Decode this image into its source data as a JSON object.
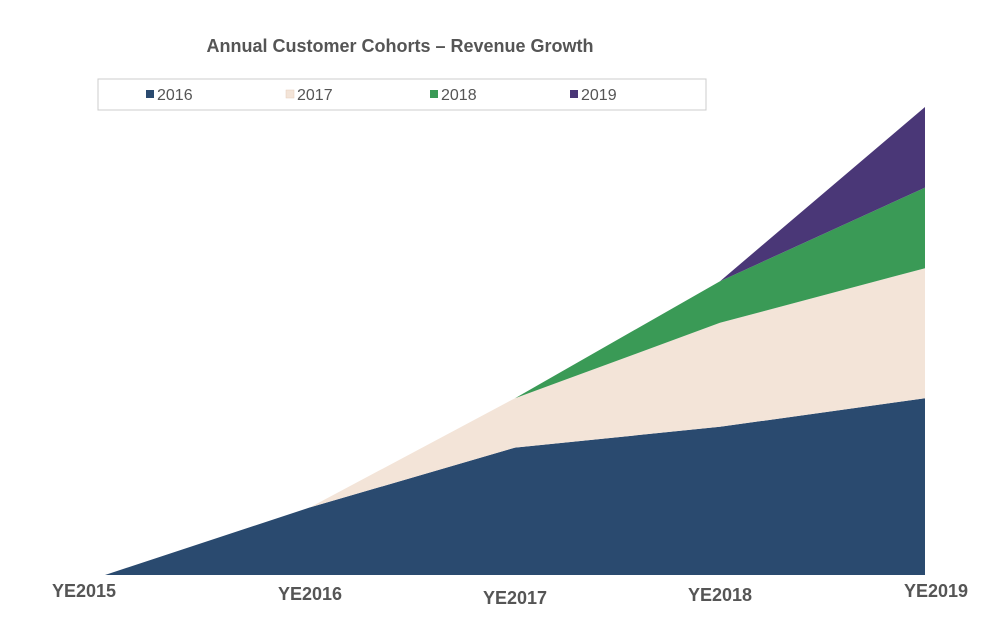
{
  "chart_data": {
    "type": "area",
    "stacked": true,
    "title": "Annual Customer Cohorts – Revenue Growth",
    "xlabel": "",
    "ylabel": "",
    "categories": [
      "YE2015",
      "YE2016",
      "YE2017",
      "YE2018",
      "YE2019"
    ],
    "ylim": [
      0,
      100
    ],
    "grid": false,
    "legend_position": "top",
    "series": [
      {
        "name": "2016",
        "color": "#2a4a6f",
        "values": [
          0,
          13,
          24.5,
          28.5,
          34
        ]
      },
      {
        "name": "2017",
        "color": "#f3e4d8",
        "values": [
          0,
          0,
          9.5,
          20,
          25
        ]
      },
      {
        "name": "2018",
        "color": "#3a9a56",
        "values": [
          0,
          0,
          0,
          8,
          15.5
        ]
      },
      {
        "name": "2019",
        "color": "#4a3777",
        "values": [
          0,
          0,
          0,
          0,
          15.5
        ]
      }
    ]
  }
}
